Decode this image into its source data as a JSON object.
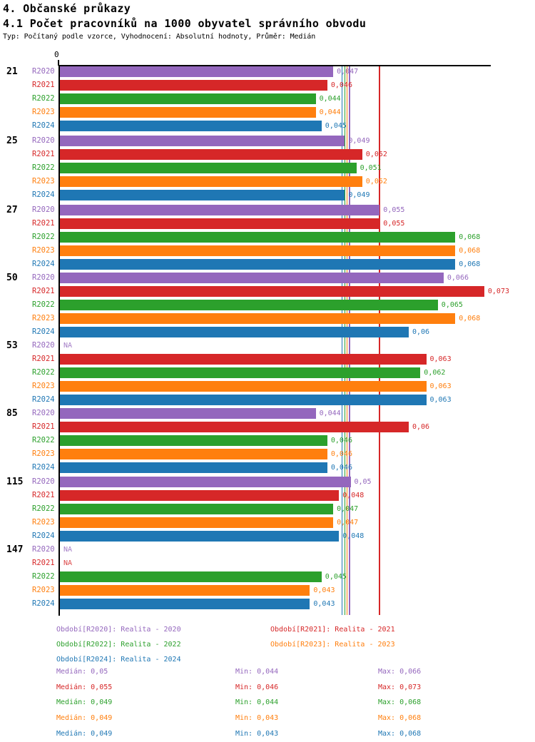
{
  "header": {
    "title1": "4. Občanské průkazy",
    "title2": "4.1 Počet pracovníků na 1000 obyvatel správního obvodu",
    "subtitle": "Typ: Počítaný podle vzorce, Vyhodnocení: Absolutní hodnoty, Průměr: Medián"
  },
  "stats_labels": {
    "median": "Medián",
    "min": "Min",
    "max": "Max"
  },
  "chart_data": {
    "type": "bar",
    "orientation": "horizontal",
    "title": "4.1 Počet pracovníků na 1000 obyvatel správního obvodu",
    "subtitle": "Typ: Počítaný podle vzorce, Vyhodnocení: Absolutní hodnoty, Průměr: Medián",
    "grid": false,
    "legend_position": "bottom",
    "na_text": "NA",
    "x_axis": {
      "zero_label": "0",
      "min": 0,
      "max": 0.0736
    },
    "categories": [
      "21",
      "25",
      "27",
      "50",
      "53",
      "85",
      "115",
      "147"
    ],
    "series": [
      {
        "name": "R2020",
        "legend_label": "Období[R2020]: Realita - 2020",
        "color": "#9467bd",
        "values": [
          0.047,
          0.049,
          0.055,
          0.066,
          null,
          0.044,
          0.05,
          null
        ],
        "median": 0.05,
        "min": 0.044,
        "max": 0.066,
        "median_line_value": 0.0497
      },
      {
        "name": "R2021",
        "legend_label": "Období[R2021]: Realita - 2021",
        "color": "#d62728",
        "values": [
          0.046,
          0.052,
          0.055,
          0.073,
          0.063,
          0.06,
          0.048,
          null
        ],
        "median": 0.055,
        "min": 0.046,
        "max": 0.073,
        "median_line_value": 0.0549
      },
      {
        "name": "R2022",
        "legend_label": "Období[R2022]: Realita - 2022",
        "color": "#2ca02c",
        "values": [
          0.044,
          0.051,
          0.068,
          0.065,
          0.062,
          0.046,
          0.047,
          0.045
        ],
        "median": 0.049,
        "min": 0.044,
        "max": 0.068,
        "median_line_value": 0.0489
      },
      {
        "name": "R2023",
        "legend_label": "Období[R2023]: Realita - 2023",
        "color": "#ff7f0e",
        "values": [
          0.044,
          0.052,
          0.068,
          0.068,
          0.063,
          0.046,
          0.047,
          0.043
        ],
        "median": 0.049,
        "min": 0.043,
        "max": 0.068,
        "median_line_value": 0.0493
      },
      {
        "name": "R2024",
        "legend_label": "Období[R2024]: Realita - 2024",
        "color": "#1f77b4",
        "values": [
          0.045,
          0.049,
          0.068,
          0.06,
          0.063,
          0.046,
          0.048,
          0.043
        ],
        "median": 0.049,
        "min": 0.043,
        "max": 0.068,
        "median_line_value": 0.0484
      }
    ]
  }
}
